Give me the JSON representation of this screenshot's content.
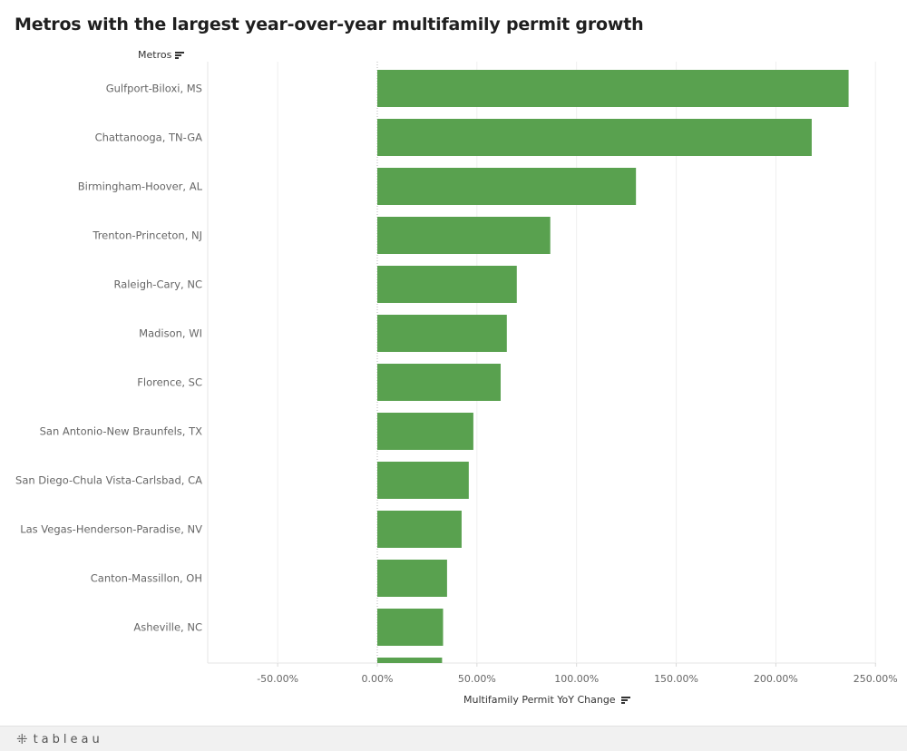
{
  "title": "Metros with the largest year-over-year multifamily permit growth",
  "row_header": "Metros",
  "footer": {
    "brand": "tableau",
    "logo_glyph": "⁜"
  },
  "chart_data": {
    "type": "bar",
    "orientation": "horizontal",
    "categories": [
      "Gulfport-Biloxi, MS",
      "Chattanooga, TN-GA",
      "Birmingham-Hoover, AL",
      "Trenton-Princeton, NJ",
      "Raleigh-Cary, NC",
      "Madison, WI",
      "Florence, SC",
      "San Antonio-New Braunfels, TX",
      "San Diego-Chula Vista-Carlsbad, CA",
      "Las Vegas-Henderson-Paradise, NV",
      "Canton-Massillon, OH",
      "Asheville, NC",
      ""
    ],
    "values": [
      236.5,
      218,
      129.8,
      86.8,
      70,
      65,
      61.9,
      48.2,
      45.9,
      42.3,
      35,
      33,
      32.5
    ],
    "xlabel": "Multifamily Permit YoY Change",
    "x_tick_values": [
      -50,
      0,
      50,
      100,
      150,
      200,
      250
    ],
    "x_tick_labels": [
      "-50.00%",
      "0.00%",
      "50.00%",
      "100.00%",
      "150.00%",
      "200.00%",
      "250.00%"
    ],
    "xlim": [
      -85,
      250
    ],
    "bar_color": "#59a14f",
    "grid": true
  }
}
